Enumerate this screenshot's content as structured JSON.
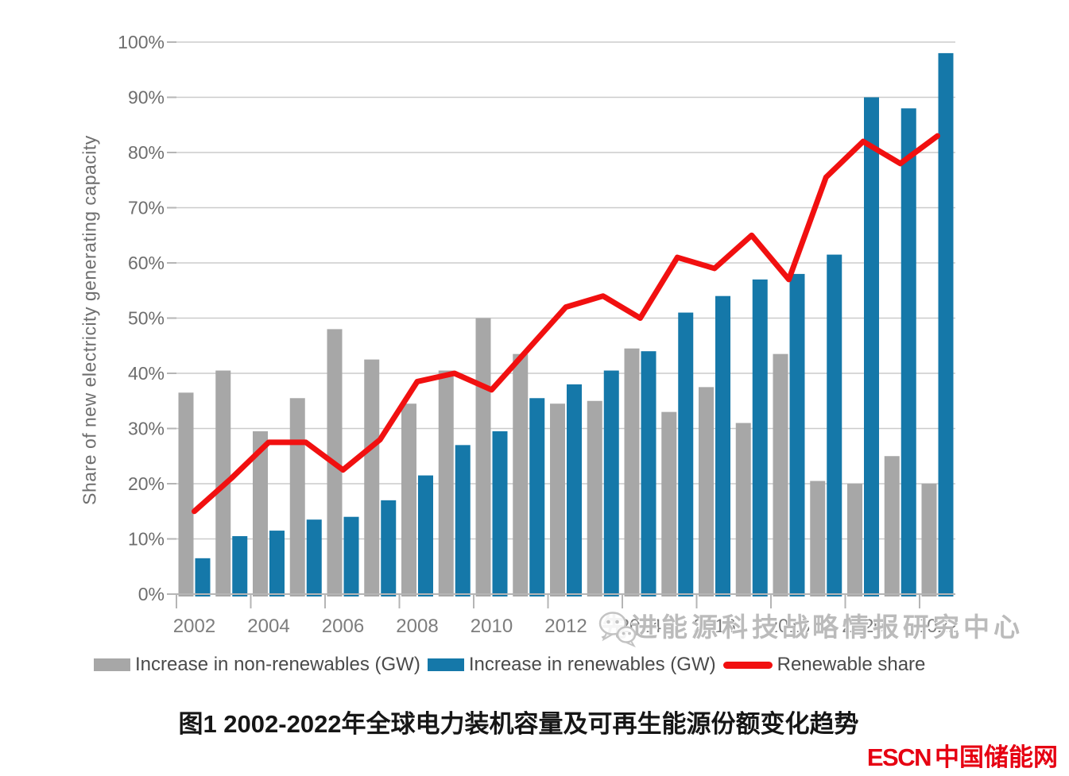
{
  "chart_data": {
    "type": "bar",
    "title": "",
    "ylabel": "Share of new electricity generating capacity",
    "ylim": [
      0,
      100
    ],
    "ytick_step": 10,
    "ytick_suffix": "%",
    "grid": true,
    "legend_position": "bottom",
    "categories": [
      "2002",
      "2003",
      "2004",
      "2005",
      "2006",
      "2007",
      "2008",
      "2009",
      "2010",
      "2011",
      "2012",
      "2013",
      "2014",
      "2015",
      "2016",
      "2017",
      "2018",
      "2019",
      "2020",
      "2021",
      "2022"
    ],
    "xtick_labels": [
      "2002",
      "2004",
      "2006",
      "2008",
      "2010",
      "2012",
      "2014",
      "2016",
      "2018",
      "2020",
      "2022"
    ],
    "series": [
      {
        "name": "Increase in non-renewables (GW)",
        "type": "bar",
        "color": "#a7a7a7",
        "values": [
          36.5,
          40.5,
          29.5,
          35.5,
          48,
          42.5,
          34.5,
          40.5,
          50,
          43.5,
          34.5,
          35,
          44.5,
          33,
          37.5,
          31,
          43.5,
          20.5,
          20,
          25,
          20
        ]
      },
      {
        "name": "Increase in renewables (GW)",
        "type": "bar",
        "color": "#1578a9",
        "values": [
          6.5,
          10.5,
          11.5,
          13.5,
          14,
          17,
          21.5,
          27,
          29.5,
          35.5,
          38,
          40.5,
          44,
          51,
          54,
          57,
          58,
          61.5,
          90,
          88,
          98
        ]
      },
      {
        "name": "Renewable share",
        "type": "line",
        "color": "#f11010",
        "values": [
          15,
          21,
          27.5,
          27.5,
          22.5,
          28,
          38.5,
          40,
          37,
          44.5,
          52,
          54,
          50,
          61,
          59,
          65,
          57,
          75.5,
          82,
          78,
          83
        ]
      }
    ]
  },
  "legend": {
    "items": [
      {
        "label": "Increase in non-renewables (GW)",
        "color": "#a7a7a7",
        "swatch": "rect"
      },
      {
        "label": "Increase in renewables (GW)",
        "color": "#1578a9",
        "swatch": "rect"
      },
      {
        "label": "Renewable share",
        "color": "#f11010",
        "swatch": "line"
      }
    ]
  },
  "watermark": {
    "icon": "wechat-icon",
    "text": "先进能源科技战略情报研究中心"
  },
  "caption": "图1 2002-2022年全球电力装机容量及可再生能源份额变化趋势",
  "logo": {
    "en": "ESCN",
    "zh": "中国储能网",
    "color": "#e60012"
  }
}
